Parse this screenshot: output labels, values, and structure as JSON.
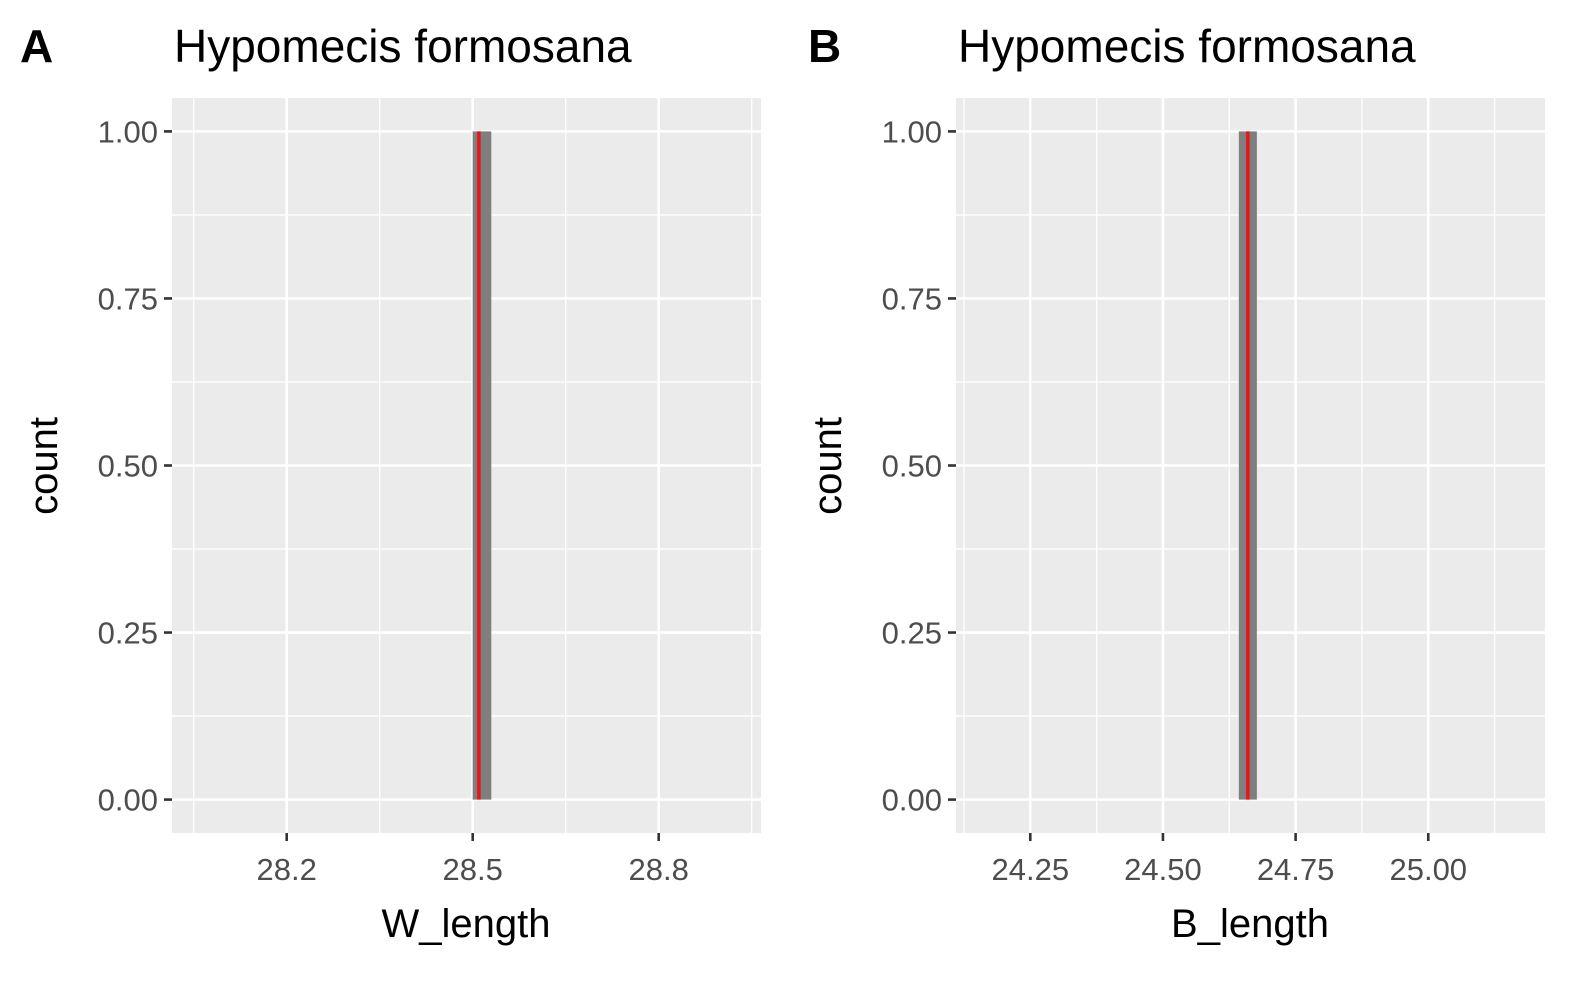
{
  "chart_data": [
    {
      "type": "bar",
      "panel_tag": "A",
      "title": "Hypomecis formosana",
      "xlabel": "W_length",
      "ylabel": "count",
      "xlim": [
        28.015,
        28.965
      ],
      "ylim": [
        -0.05,
        1.05
      ],
      "x_ticks": [
        28.2,
        28.5,
        28.8
      ],
      "x_tick_labels": [
        "28.2",
        "28.5",
        "28.8"
      ],
      "y_ticks": [
        0,
        0.25,
        0.5,
        0.75,
        1
      ],
      "y_tick_labels": [
        "0.00",
        "0.25",
        "0.50",
        "0.75",
        "1.00"
      ],
      "grid": true,
      "bars": [
        {
          "xmin": 28.5,
          "xmax": 28.53,
          "count": 1
        }
      ],
      "vline": {
        "x": 28.51,
        "color": "#e8151b"
      },
      "bar_color": "#7f7f7f",
      "panel_background": "#ebebeb"
    },
    {
      "type": "bar",
      "panel_tag": "B",
      "title": "Hypomecis formosana",
      "xlabel": "B_length",
      "ylabel": "count",
      "xlim": [
        24.11,
        25.22
      ],
      "ylim": [
        -0.05,
        1.05
      ],
      "x_ticks": [
        24.25,
        24.5,
        24.75,
        25.0
      ],
      "x_tick_labels": [
        "24.25",
        "24.50",
        "24.75",
        "25.00"
      ],
      "y_ticks": [
        0,
        0.25,
        0.5,
        0.75,
        1
      ],
      "y_tick_labels": [
        "0.00",
        "0.25",
        "0.50",
        "0.75",
        "1.00"
      ],
      "grid": true,
      "bars": [
        {
          "xmin": 24.643,
          "xmax": 24.677,
          "count": 1
        }
      ],
      "vline": {
        "x": 24.66,
        "color": "#e8151b"
      },
      "bar_color": "#7f7f7f",
      "panel_background": "#ebebeb"
    }
  ]
}
